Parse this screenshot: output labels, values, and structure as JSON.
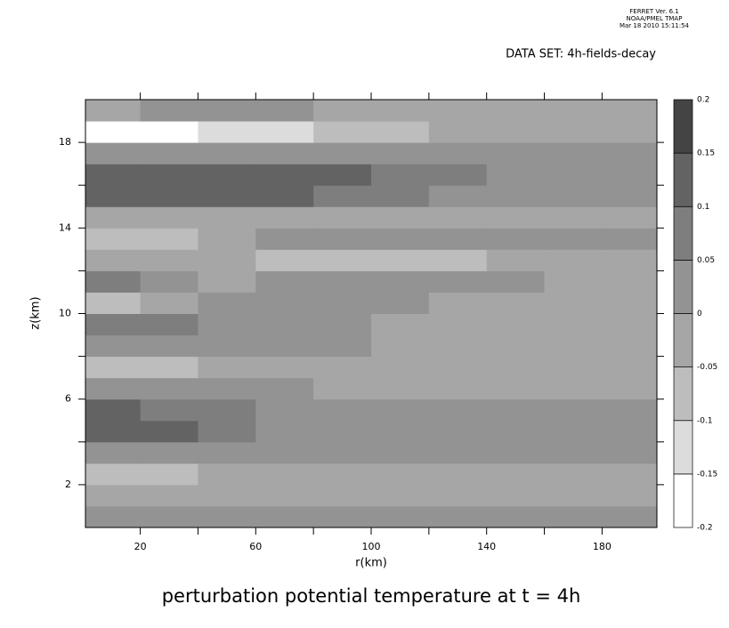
{
  "chart_data": {
    "type": "contour",
    "stamp": [
      "FERRET Ver. 6.1",
      "NOAA/PMEL TMAP",
      "Mar 18 2010 15:11:54"
    ],
    "dataset": "DATA SET: 4h-fields-decay",
    "title": "perturbation potential temperature at t = 4h",
    "x_label": "r(km)",
    "y_label": "z(km)",
    "xlim": [
      1,
      199
    ],
    "ylim": [
      0,
      20
    ],
    "xticks": [
      20,
      60,
      100,
      140,
      180
    ],
    "xminor_ticks": [
      40,
      80,
      120,
      160
    ],
    "yticks": [
      2,
      6,
      10,
      14,
      18
    ],
    "yminor_ticks": [
      4,
      8,
      12,
      16
    ],
    "x": [
      10,
      30,
      50,
      70,
      90,
      110,
      130,
      150,
      170,
      190
    ],
    "y": [
      0.5,
      1.5,
      2.5,
      3.5,
      4.5,
      5.5,
      6.5,
      7.5,
      8.5,
      9.5,
      10.5,
      11.5,
      12.5,
      13.5,
      14.5,
      15.5,
      16.5,
      17.5,
      18.5,
      19.5
    ],
    "z": [
      [
        0.03,
        0.02,
        0.02,
        0.02,
        0.02,
        0.02,
        0.02,
        0.02,
        0.02,
        0.02
      ],
      [
        -0.03,
        -0.03,
        -0.03,
        -0.03,
        -0.03,
        -0.03,
        -0.03,
        -0.03,
        -0.03,
        -0.03
      ],
      [
        -0.07,
        -0.07,
        -0.04,
        -0.03,
        -0.03,
        -0.03,
        -0.03,
        -0.03,
        -0.03,
        -0.03
      ],
      [
        0.02,
        0.02,
        0.02,
        0.02,
        0.02,
        0.02,
        0.02,
        0.02,
        0.02,
        0.02
      ],
      [
        0.12,
        0.1,
        0.07,
        0.04,
        0.02,
        0.02,
        0.02,
        0.02,
        0.02,
        0.02
      ],
      [
        0.1,
        0.08,
        0.06,
        0.03,
        0.02,
        0.02,
        0.02,
        0.02,
        0.02,
        0.02
      ],
      [
        0.02,
        0.02,
        0.02,
        0.02,
        -0.02,
        -0.02,
        -0.02,
        -0.02,
        -0.02,
        -0.02
      ],
      [
        -0.07,
        -0.07,
        -0.04,
        -0.02,
        -0.02,
        -0.02,
        -0.02,
        -0.02,
        -0.02,
        -0.02
      ],
      [
        0.02,
        0.02,
        0.02,
        0.02,
        0.02,
        -0.02,
        -0.02,
        -0.02,
        -0.02,
        -0.02
      ],
      [
        0.08,
        0.05,
        0.03,
        0.02,
        0.01,
        -0.02,
        -0.02,
        -0.02,
        -0.02,
        -0.02
      ],
      [
        -0.07,
        -0.03,
        0.03,
        0.03,
        0.03,
        0.02,
        -0.02,
        -0.02,
        -0.02,
        -0.02
      ],
      [
        0.08,
        0.03,
        -0.02,
        0.03,
        0.02,
        0.02,
        0.02,
        0.02,
        -0.02,
        -0.02
      ],
      [
        -0.02,
        -0.02,
        -0.04,
        -0.07,
        -0.07,
        -0.07,
        -0.07,
        -0.04,
        -0.02,
        -0.02
      ],
      [
        -0.07,
        -0.08,
        -0.03,
        0.03,
        0.04,
        0.04,
        0.03,
        0.03,
        0.02,
        0.02
      ],
      [
        -0.04,
        -0.04,
        -0.02,
        -0.02,
        -0.02,
        -0.02,
        -0.02,
        -0.02,
        -0.02,
        -0.02
      ],
      [
        0.12,
        0.12,
        0.12,
        0.1,
        0.08,
        0.06,
        0.04,
        0.03,
        0.02,
        0.02
      ],
      [
        0.12,
        0.12,
        0.12,
        0.12,
        0.1,
        0.08,
        0.06,
        0.03,
        0.02,
        0.02
      ],
      [
        0.03,
        0.03,
        0.03,
        0.03,
        0.02,
        0.02,
        0.02,
        0.02,
        0.02,
        0.02
      ],
      [
        -0.17,
        -0.17,
        -0.15,
        -0.13,
        -0.1,
        -0.07,
        -0.05,
        -0.03,
        -0.02,
        -0.02
      ],
      [
        -0.03,
        0.02,
        0.02,
        0.02,
        -0.02,
        -0.02,
        -0.02,
        -0.02,
        -0.02,
        -0.02
      ]
    ],
    "levels": [
      -0.2,
      -0.15,
      -0.1,
      -0.05,
      0,
      0.05,
      0.1,
      0.15,
      0.2
    ],
    "level_colors": [
      "#ffffff",
      "#dcdcdc",
      "#bdbdbd",
      "#a6a6a6",
      "#939393",
      "#7e7e7e",
      "#636363",
      "#444444"
    ]
  }
}
